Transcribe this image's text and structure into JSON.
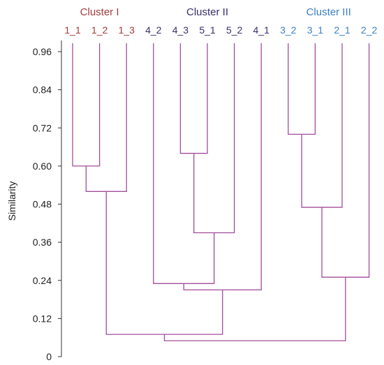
{
  "chart_data": {
    "type": "dendrogram",
    "ylabel": "Similarity",
    "ylim": [
      0,
      1.0
    ],
    "yticks": [
      "0",
      "0.12",
      "0.24",
      "0.36",
      "0.48",
      "0.60",
      "0.72",
      "0.84",
      "0.96"
    ],
    "link_color": "#a14d9b",
    "axis_color": "#333333",
    "clusters": [
      {
        "name": "Cluster I",
        "color": "#a23b3b",
        "leaves": [
          "1_1",
          "1_2",
          "1_3"
        ]
      },
      {
        "name": "Cluster II",
        "color": "#3a2e6b",
        "leaves": [
          "4_2",
          "4_3",
          "5_1",
          "5_2",
          "4_1"
        ]
      },
      {
        "name": "Cluster III",
        "color": "#3b7fc4",
        "leaves": [
          "3_2",
          "3_1",
          "2_1",
          "2_2"
        ]
      }
    ],
    "leaves": [
      {
        "label": "1_1",
        "cluster": 0
      },
      {
        "label": "1_2",
        "cluster": 0
      },
      {
        "label": "1_3",
        "cluster": 0
      },
      {
        "label": "4_2",
        "cluster": 1
      },
      {
        "label": "4_3",
        "cluster": 1
      },
      {
        "label": "5_1",
        "cluster": 1
      },
      {
        "label": "5_2",
        "cluster": 1
      },
      {
        "label": "4_1",
        "cluster": 1
      },
      {
        "label": "3_2",
        "cluster": 2
      },
      {
        "label": "3_1",
        "cluster": 2
      },
      {
        "label": "2_1",
        "cluster": 2
      },
      {
        "label": "2_2",
        "cluster": 2
      }
    ],
    "merges": [
      {
        "a": "1_1",
        "b": "1_2",
        "similarity": 0.6
      },
      {
        "a": "m0",
        "b": "1_3",
        "similarity": 0.52
      },
      {
        "a": "4_3",
        "b": "5_1",
        "similarity": 0.64
      },
      {
        "a": "m2",
        "b": "5_2",
        "similarity": 0.39
      },
      {
        "a": "4_2",
        "b": "m3",
        "similarity": 0.23
      },
      {
        "a": "m4",
        "b": "4_1",
        "similarity": 0.21
      },
      {
        "a": "3_2",
        "b": "3_1",
        "similarity": 0.7
      },
      {
        "a": "m6",
        "b": "2_1",
        "similarity": 0.47
      },
      {
        "a": "m7",
        "b": "2_2",
        "similarity": 0.25
      },
      {
        "a": "m1",
        "b": "m5",
        "similarity": 0.07
      },
      {
        "a": "m9",
        "b": "m8",
        "similarity": 0.05
      }
    ]
  }
}
